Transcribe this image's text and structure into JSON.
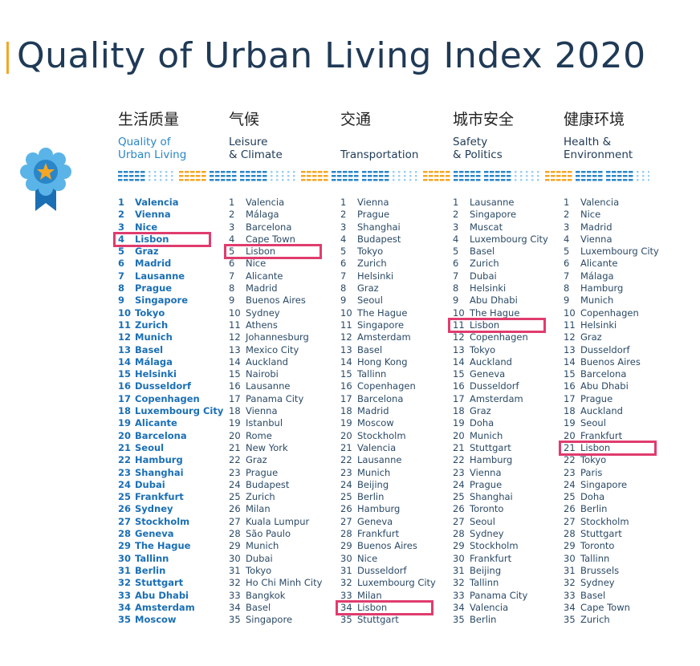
{
  "title": "Quality of Urban Living Index 2020",
  "colors": {
    "title": "#1f3a56",
    "accent_blue": "#2a86c8",
    "accent_orange": "#f5a623",
    "highlight": "#e03c6e"
  },
  "badge_icon": "ribbon-award-icon",
  "chart_data": {
    "type": "table",
    "title": "Quality of Urban Living Index 2020",
    "highlighted_city": "Lisbon",
    "columns": [
      {
        "cn": "生活质量",
        "en1": "Quality of",
        "en2": "Urban Living",
        "ranking": [
          "Valencia",
          "Vienna",
          "Nice",
          "Lisbon",
          "Graz",
          "Madrid",
          "Lausanne",
          "Prague",
          "Singapore",
          "Tokyo",
          "Zurich",
          "Munich",
          "Basel",
          "Málaga",
          "Helsinki",
          "Dusseldorf",
          "Copenhagen",
          "Luxembourg City",
          "Alicante",
          "Barcelona",
          "Seoul",
          "Hamburg",
          "Shanghai",
          "Dubai",
          "Frankfurt",
          "Sydney",
          "Stockholm",
          "Geneva",
          "The Hague",
          "Tallinn",
          "Berlin",
          "Stuttgart",
          "Abu Dhabi",
          "Amsterdam",
          "Moscow"
        ],
        "lisbon_rank": 4
      },
      {
        "cn": "气候",
        "en1": "Leisure",
        "en2": "& Climate",
        "ranking": [
          "Valencia",
          "Málaga",
          "Barcelona",
          "Cape Town",
          "Lisbon",
          "Nice",
          "Alicante",
          "Madrid",
          "Buenos Aires",
          "Sydney",
          "Athens",
          "Johannesburg",
          "Mexico City",
          "Auckland",
          "Nairobi",
          "Lausanne",
          "Panama City",
          "Vienna",
          "Istanbul",
          "Rome",
          "New York",
          "Graz",
          "Prague",
          "Budapest",
          "Zurich",
          "Milan",
          "Kuala Lumpur",
          "São Paulo",
          "Munich",
          "Dubai",
          "Tokyo",
          "Ho Chi Minh City",
          "Bangkok",
          "Basel",
          "Singapore"
        ],
        "lisbon_rank": 5
      },
      {
        "cn": "交通",
        "en1": "",
        "en2": "Transportation",
        "ranking": [
          "Vienna",
          "Prague",
          "Shanghai",
          "Budapest",
          "Tokyo",
          "Zurich",
          "Helsinki",
          "Graz",
          "Seoul",
          "The Hague",
          "Singapore",
          "Amsterdam",
          "Basel",
          "Hong Kong",
          "Tallinn",
          "Copenhagen",
          "Barcelona",
          "Madrid",
          "Moscow",
          "Stockholm",
          "Valencia",
          "Lausanne",
          "Munich",
          "Beijing",
          "Berlin",
          "Hamburg",
          "Geneva",
          "Frankfurt",
          "Buenos Aires",
          "Nice",
          "Dusseldorf",
          "Luxembourg City",
          "Milan",
          "Lisbon",
          "Stuttgart"
        ],
        "lisbon_rank": 34
      },
      {
        "cn": "城市安全",
        "en1": "Safety",
        "en2": "& Politics",
        "ranking": [
          "Lausanne",
          "Singapore",
          "Muscat",
          "Luxembourg City",
          "Basel",
          "Zurich",
          "Dubai",
          "Helsinki",
          "Abu Dhabi",
          "The Hague",
          "Lisbon",
          "Copenhagen",
          "Tokyo",
          "Auckland",
          "Geneva",
          "Dusseldorf",
          "Amsterdam",
          "Graz",
          "Doha",
          "Munich",
          "Stuttgart",
          "Hamburg",
          "Vienna",
          "Prague",
          "Shanghai",
          "Toronto",
          "Seoul",
          "Sydney",
          "Stockholm",
          "Frankfurt",
          "Beijing",
          "Tallinn",
          "Panama City",
          "Valencia",
          "Berlin"
        ],
        "lisbon_rank": 11
      },
      {
        "cn": "健康环境",
        "en1": "Health &",
        "en2": "Environment",
        "ranking": [
          "Valencia",
          "Nice",
          "Madrid",
          "Vienna",
          "Luxembourg City",
          "Alicante",
          "Málaga",
          "Hamburg",
          "Munich",
          "Copenhagen",
          "Helsinki",
          "Graz",
          "Dusseldorf",
          "Buenos Aires",
          "Barcelona",
          "Abu Dhabi",
          "Prague",
          "Auckland",
          "Seoul",
          "Frankfurt",
          "Lisbon",
          "Tokyo",
          "Paris",
          "Singapore",
          "Doha",
          "Berlin",
          "Stockholm",
          "Stuttgart",
          "Toronto",
          "Tallinn",
          "Brussels",
          "Sydney",
          "Basel",
          "Cape Town",
          "Zurich"
        ],
        "lisbon_rank": 21
      }
    ]
  }
}
